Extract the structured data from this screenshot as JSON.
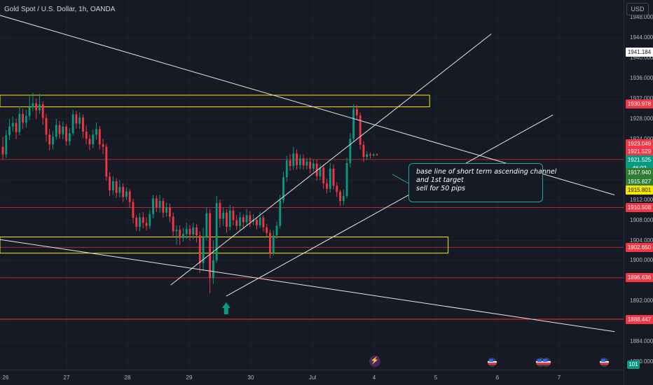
{
  "header": {
    "title": "Gold Spot / U.S. Dollar, 1h, OANDA",
    "currency": "USD"
  },
  "chart_data": {
    "type": "candlestick",
    "y_ticks": [
      "1948.000",
      "1944.000",
      "1940.000",
      "1936.000",
      "1932.000",
      "1928.000",
      "1924.000",
      "1920.000",
      "1916.000",
      "1912.000",
      "1908.000",
      "1904.000",
      "1900.000",
      "1896.000",
      "1892.000",
      "1888.000",
      "1884.000",
      "1880.000"
    ],
    "x_ticks": [
      "26",
      "27",
      "28",
      "29",
      "30",
      "Jul",
      "4",
      "5",
      "6",
      "7"
    ],
    "ylim": [
      1878.5,
      1951.5
    ],
    "price_labels": [
      {
        "text": "1941.184",
        "price": 1941.18,
        "bg": "#ffffff",
        "fg": "#131722"
      },
      {
        "text": "1930.978",
        "price": 1930.98,
        "bg": "#f23645",
        "fg": "#ffffff"
      },
      {
        "text": "1923.049",
        "price": 1923.05,
        "bg": "#f23645",
        "fg": "#ffffff"
      },
      {
        "text": "1921.529",
        "price": 1921.53,
        "bg": "#f23645",
        "fg": "#ffffff"
      },
      {
        "text": "1921.525",
        "price": 1919.9,
        "bg": "#089981",
        "fg": "#ffffff"
      },
      {
        "text": "46:02",
        "price": 1918.3,
        "bg": "#089981",
        "fg": "#ffffff"
      },
      {
        "text": "1917.940",
        "price": 1917.4,
        "bg": "#2e7d32",
        "fg": "#ffffff"
      },
      {
        "text": "1915.827",
        "price": 1915.6,
        "bg": "#2e7d32",
        "fg": "#ffffff"
      },
      {
        "text": "1915.801",
        "price": 1913.9,
        "bg": "#f5e600",
        "fg": "#131722"
      },
      {
        "text": "1910.508",
        "price": 1910.51,
        "bg": "#f23645",
        "fg": "#ffffff"
      },
      {
        "text": "1902.650",
        "price": 1902.65,
        "bg": "#f23645",
        "fg": "#ffffff"
      },
      {
        "text": "1896.636",
        "price": 1896.64,
        "bg": "#f23645",
        "fg": "#ffffff"
      },
      {
        "text": "1888.447",
        "price": 1888.45,
        "bg": "#f23645",
        "fg": "#ffffff"
      }
    ],
    "horizontal_lines": [
      {
        "price": 1920.0,
        "color": "#b22833"
      },
      {
        "price": 1910.51,
        "color": "#b22833"
      },
      {
        "price": 1902.65,
        "color": "#b22833"
      },
      {
        "price": 1896.64,
        "color": "#b22833"
      },
      {
        "price": 1888.45,
        "color": "#ff2a2a"
      }
    ],
    "zones": [
      {
        "price_top": 1932.7,
        "price_bottom": 1930.4,
        "x_from": "25",
        "x_to": "Jul+1.9"
      },
      {
        "price_top": 1904.7,
        "price_bottom": 1901.5,
        "x_from": "25",
        "x_to": "Jul+2.2"
      }
    ],
    "trend_lines": [
      {
        "from": {
          "x": "25.9",
          "price": 1948.5
        },
        "to": {
          "x": "7.9",
          "price": 1913.0
        }
      },
      {
        "from": {
          "x": "25.9",
          "price": 1904.2
        },
        "to": {
          "x": "7.9",
          "price": 1886.0
        }
      },
      {
        "from": {
          "x": "28.7",
          "price": 1895.2
        },
        "to": {
          "x": "5.9",
          "price": 1944.8
        }
      },
      {
        "from": {
          "x": "29.6",
          "price": 1893.0
        },
        "to": {
          "x": "6.9",
          "price": 1928.8
        }
      }
    ],
    "candles": [
      [
        1922.5,
        1921.0,
        1924.5,
        1920.0
      ],
      [
        1921.0,
        1924.8,
        1925.8,
        1920.3
      ],
      [
        1924.8,
        1926.5,
        1928.0,
        1923.8
      ],
      [
        1926.5,
        1927.2,
        1928.5,
        1925.5
      ],
      [
        1927.2,
        1925.4,
        1928.1,
        1924.0
      ],
      [
        1925.4,
        1929.0,
        1930.5,
        1924.8
      ],
      [
        1929.0,
        1927.3,
        1930.0,
        1926.0
      ],
      [
        1927.3,
        1928.6,
        1929.8,
        1926.3
      ],
      [
        1928.6,
        1930.3,
        1932.5,
        1927.8
      ],
      [
        1930.3,
        1931.1,
        1933.2,
        1929.5
      ],
      [
        1931.1,
        1929.7,
        1932.0,
        1928.0
      ],
      [
        1929.7,
        1930.9,
        1933.0,
        1929.0
      ],
      [
        1930.9,
        1928.2,
        1931.5,
        1926.8
      ],
      [
        1928.2,
        1924.9,
        1929.0,
        1923.5
      ],
      [
        1924.9,
        1923.0,
        1926.0,
        1921.8
      ],
      [
        1923.0,
        1924.5,
        1925.6,
        1922.0
      ],
      [
        1924.5,
        1926.8,
        1928.0,
        1923.9
      ],
      [
        1926.8,
        1925.0,
        1927.6,
        1924.1
      ],
      [
        1925.0,
        1926.5,
        1927.5,
        1924.0
      ],
      [
        1926.5,
        1923.6,
        1927.0,
        1922.7
      ],
      [
        1923.6,
        1925.2,
        1926.2,
        1922.8
      ],
      [
        1925.2,
        1928.9,
        1929.8,
        1924.8
      ],
      [
        1928.9,
        1927.1,
        1929.6,
        1926.1
      ],
      [
        1927.1,
        1928.3,
        1929.3,
        1926.0
      ],
      [
        1928.3,
        1925.5,
        1928.9,
        1924.2
      ],
      [
        1925.5,
        1924.1,
        1926.7,
        1923.0
      ],
      [
        1924.1,
        1923.0,
        1924.9,
        1921.8
      ],
      [
        1923.0,
        1924.9,
        1925.9,
        1922.2
      ],
      [
        1924.9,
        1926.0,
        1927.3,
        1923.9
      ],
      [
        1926.0,
        1923.0,
        1926.6,
        1922.0
      ],
      [
        1923.0,
        1922.5,
        1924.0,
        1921.0
      ],
      [
        1922.5,
        1916.6,
        1923.1,
        1915.8
      ],
      [
        1916.6,
        1913.9,
        1917.5,
        1912.8
      ],
      [
        1913.9,
        1915.7,
        1916.7,
        1913.0
      ],
      [
        1915.7,
        1913.4,
        1916.3,
        1912.4
      ],
      [
        1913.4,
        1914.6,
        1915.9,
        1912.5
      ],
      [
        1914.6,
        1912.6,
        1915.3,
        1911.6
      ],
      [
        1912.6,
        1913.7,
        1914.5,
        1912.0
      ],
      [
        1913.7,
        1911.6,
        1914.2,
        1910.4
      ],
      [
        1911.6,
        1908.5,
        1912.2,
        1907.4
      ],
      [
        1908.5,
        1906.7,
        1909.0,
        1905.9
      ],
      [
        1906.7,
        1908.6,
        1909.4,
        1905.8
      ],
      [
        1908.6,
        1907.5,
        1909.6,
        1906.4
      ],
      [
        1907.5,
        1906.9,
        1908.6,
        1906.0
      ],
      [
        1906.9,
        1909.2,
        1910.1,
        1906.3
      ],
      [
        1909.2,
        1912.3,
        1913.0,
        1908.4
      ],
      [
        1912.3,
        1910.6,
        1912.9,
        1909.6
      ],
      [
        1910.6,
        1911.8,
        1913.0,
        1909.5
      ],
      [
        1911.8,
        1909.5,
        1912.4,
        1908.5
      ],
      [
        1909.5,
        1910.6,
        1911.5,
        1908.7
      ],
      [
        1910.6,
        1908.7,
        1911.3,
        1907.6
      ],
      [
        1908.7,
        1905.8,
        1909.5,
        1904.9
      ],
      [
        1905.8,
        1906.1,
        1907.0,
        1903.2
      ],
      [
        1906.1,
        1904.5,
        1907.0,
        1903.1
      ],
      [
        1904.5,
        1905.3,
        1906.5,
        1903.8
      ],
      [
        1905.3,
        1906.3,
        1907.5,
        1904.3
      ],
      [
        1906.3,
        1905.2,
        1907.0,
        1903.9
      ],
      [
        1905.2,
        1906.6,
        1907.5,
        1904.2
      ],
      [
        1906.6,
        1905.0,
        1907.2,
        1903.6
      ],
      [
        1905.0,
        1899.5,
        1905.8,
        1897.6
      ],
      [
        1899.5,
        1904.7,
        1906.5,
        1898.0
      ],
      [
        1904.7,
        1909.4,
        1910.5,
        1904.0
      ],
      [
        1909.4,
        1896.6,
        1910.2,
        1893.6
      ],
      [
        1896.6,
        1900.1,
        1904.0,
        1895.4
      ],
      [
        1900.1,
        1911.4,
        1912.8,
        1899.6
      ],
      [
        1911.4,
        1908.3,
        1912.1,
        1906.6
      ],
      [
        1908.3,
        1909.5,
        1910.5,
        1906.9
      ],
      [
        1909.5,
        1906.7,
        1910.2,
        1905.5
      ],
      [
        1906.7,
        1909.9,
        1911.0,
        1906.0
      ],
      [
        1909.9,
        1908.0,
        1910.7,
        1907.0
      ],
      [
        1908.0,
        1906.9,
        1909.0,
        1906.1
      ],
      [
        1906.9,
        1908.6,
        1909.6,
        1906.0
      ],
      [
        1908.6,
        1907.6,
        1909.2,
        1906.5
      ],
      [
        1907.6,
        1909.0,
        1910.2,
        1906.9
      ],
      [
        1909.0,
        1907.7,
        1909.8,
        1906.7
      ],
      [
        1907.7,
        1908.1,
        1909.2,
        1907.0
      ],
      [
        1908.1,
        1907.0,
        1908.6,
        1906.1
      ],
      [
        1907.0,
        1908.5,
        1909.6,
        1906.5
      ],
      [
        1908.5,
        1906.6,
        1909.0,
        1905.7
      ],
      [
        1906.6,
        1905.5,
        1907.3,
        1904.7
      ],
      [
        1905.5,
        1901.5,
        1906.2,
        1900.5
      ],
      [
        1901.5,
        1905.0,
        1906.0,
        1901.0
      ],
      [
        1905.0,
        1906.9,
        1907.7,
        1904.3
      ],
      [
        1906.9,
        1912.0,
        1913.0,
        1906.4
      ],
      [
        1912.0,
        1916.5,
        1917.6,
        1911.4
      ],
      [
        1916.5,
        1919.8,
        1920.7,
        1915.6
      ],
      [
        1919.8,
        1918.7,
        1921.0,
        1917.8
      ],
      [
        1918.7,
        1921.2,
        1922.5,
        1917.9
      ],
      [
        1921.2,
        1918.9,
        1922.0,
        1918.0
      ],
      [
        1918.9,
        1920.2,
        1921.0,
        1918.1
      ],
      [
        1920.2,
        1918.8,
        1921.0,
        1918.0
      ],
      [
        1918.8,
        1919.6,
        1920.3,
        1918.0
      ],
      [
        1919.6,
        1918.2,
        1920.4,
        1917.3
      ],
      [
        1918.2,
        1919.2,
        1920.0,
        1917.6
      ],
      [
        1919.2,
        1916.7,
        1920.0,
        1915.8
      ],
      [
        1916.7,
        1918.4,
        1919.0,
        1915.9
      ],
      [
        1918.4,
        1915.3,
        1919.0,
        1914.2
      ],
      [
        1915.3,
        1914.2,
        1916.2,
        1913.3
      ],
      [
        1914.2,
        1918.2,
        1919.3,
        1913.5
      ],
      [
        1918.2,
        1914.8,
        1919.0,
        1914.0
      ],
      [
        1914.8,
        1913.6,
        1915.5,
        1912.6
      ],
      [
        1913.6,
        1911.8,
        1914.0,
        1910.8
      ],
      [
        1911.8,
        1912.8,
        1914.1,
        1911.0
      ],
      [
        1912.8,
        1919.3,
        1920.4,
        1912.3
      ],
      [
        1919.3,
        1924.1,
        1925.2,
        1918.5
      ],
      [
        1924.1,
        1930.0,
        1930.9,
        1923.5
      ],
      [
        1930.0,
        1928.7,
        1930.8,
        1927.8
      ],
      [
        1928.7,
        1922.9,
        1929.3,
        1922.0
      ],
      [
        1922.9,
        1920.5,
        1923.6,
        1919.5
      ],
      [
        1920.5,
        1921.0,
        1921.7,
        1919.9
      ],
      [
        1921.0,
        1920.8,
        1921.4,
        1920.2
      ],
      [
        1920.8,
        1921.0,
        1921.2,
        1920.6
      ],
      [
        1921.0,
        1920.9,
        1921.2,
        1920.7
      ]
    ],
    "annotation": {
      "lines": [
        "base line of short term ascending channel",
        "and 1st target",
        "sell for 50 pips"
      ]
    },
    "arrow": {
      "x": "29.6",
      "color": "#089981",
      "direction": "up"
    },
    "colors": {
      "up": "#089981",
      "down": "#f23645",
      "zone": "#f5e600",
      "lines": "#e6e6e6",
      "grid": "#1e222d"
    }
  },
  "events": {
    "dividend_symbol": "⚡",
    "counter": "101"
  }
}
